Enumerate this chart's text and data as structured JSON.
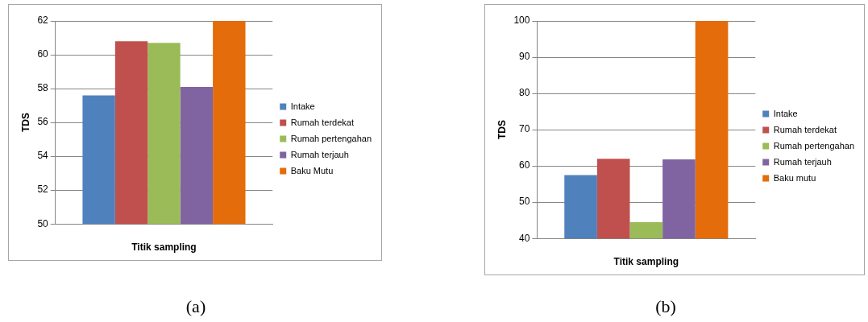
{
  "chart_data": [
    {
      "type": "bar",
      "categories": [
        null
      ],
      "xlabel": "Titik sampling",
      "ylabel": "TDS",
      "ylim": [
        50,
        62
      ],
      "yticks": [
        50,
        52,
        54,
        56,
        58,
        60,
        62
      ],
      "grid": "y",
      "legend": "right",
      "series": [
        {
          "name": "Intake",
          "color": "#4f81bd",
          "values": [
            57.6
          ]
        },
        {
          "name": "Rumah terdekat",
          "color": "#c0504d",
          "values": [
            60.8
          ]
        },
        {
          "name": "Rumah pertengahan",
          "color": "#9bbb59",
          "values": [
            60.7
          ]
        },
        {
          "name": "Rumah terjauh",
          "color": "#8064a2",
          "values": [
            58.1
          ]
        },
        {
          "name": "Baku Mutu",
          "color": "#e46c0a",
          "values": [
            62
          ]
        }
      ],
      "annotations": [
        "(a)"
      ]
    },
    {
      "type": "bar",
      "categories": [
        null
      ],
      "xlabel": "Titik sampling",
      "ylabel": "TDS",
      "ylim": [
        40,
        100
      ],
      "yticks": [
        40,
        50,
        60,
        70,
        80,
        90,
        100
      ],
      "grid": "y",
      "legend": "right",
      "series": [
        {
          "name": "Intake",
          "color": "#4f81bd",
          "values": [
            57.5
          ]
        },
        {
          "name": "Rumah terdekat",
          "color": "#c0504d",
          "values": [
            62
          ]
        },
        {
          "name": "Rumah pertengahan",
          "color": "#9bbb59",
          "values": [
            44.5
          ]
        },
        {
          "name": "Rumah terjauh",
          "color": "#8064a2",
          "values": [
            61.8
          ]
        },
        {
          "name": "Baku mutu",
          "color": "#e46c0a",
          "values": [
            100
          ]
        }
      ],
      "annotations": [
        "(b)"
      ]
    }
  ]
}
